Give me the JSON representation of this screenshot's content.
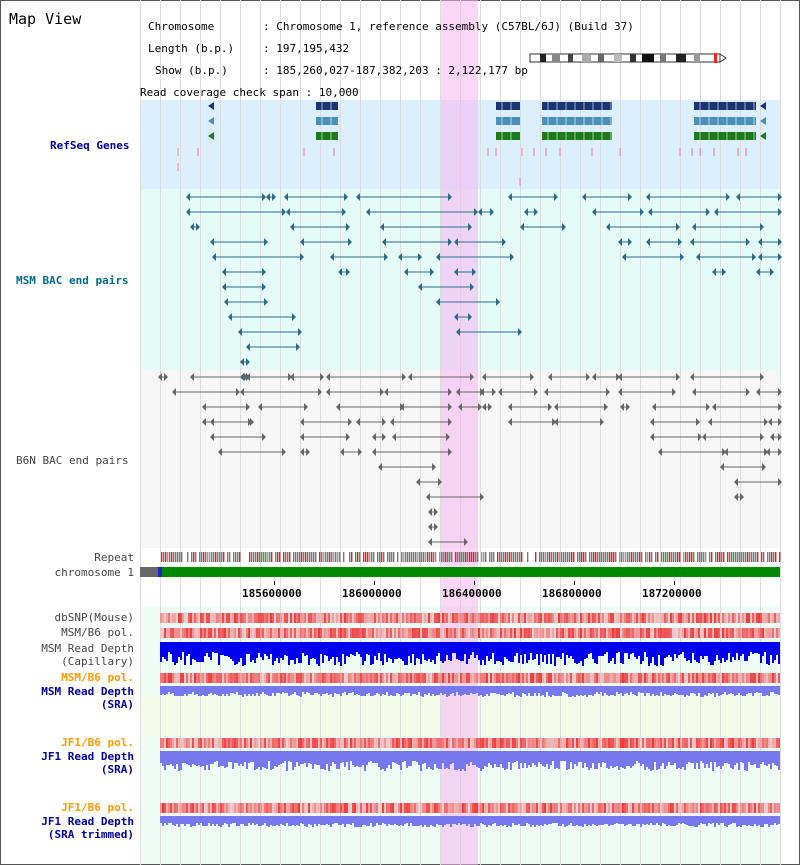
{
  "view_title": "Map View",
  "info": {
    "chromosome_key": "Chromosome",
    "chromosome_val": "Chromosome 1, reference assembly (C57BL/6J) (Build 37)",
    "length_key": "Length (b.p.)",
    "length_val": "197,195,432",
    "show_key": "Show (b.p.)",
    "show_val": "185,260,027-187,382,203 : 2,122,177 bp",
    "coverage_key": "Read coverage check span",
    "coverage_val": "10,000"
  },
  "tracks": {
    "refseq": "RefSeq Genes",
    "msm_bac": "MSM BAC end pairs",
    "b6n_bac": "B6N BAC end pairs",
    "repeat": "Repeat",
    "chromosome": "chromosome 1",
    "dbsnp": "dbSNP(Mouse)",
    "msm_b6_pol1": "MSM/B6 pol.",
    "msm_depth_cap_1": "MSM Read Depth",
    "msm_depth_cap_2": "(Capillary)",
    "msm_b6_pol2": "MSM/B6 pol.",
    "msm_depth_sra_1": "MSM Read Depth",
    "msm_depth_sra_2": "(SRA)",
    "jf1_b6_pol1": "JF1/B6 pol.",
    "jf1_depth_sra_1": "JF1 Read Depth",
    "jf1_depth_sra_2": "(SRA)",
    "jf1_b6_pol2": "JF1/B6 pol.",
    "jf1_depth_trim_1": "JF1 Read Depth",
    "jf1_depth_trim_2": "(SRA trimmed)"
  },
  "axis_ticks": [
    "185600000",
    "186000000",
    "186400000",
    "186800000",
    "187200000"
  ],
  "colors": {
    "refseq_bg": "#dcefff",
    "bac_bg": "#e4fbf8",
    "b6n_bg": "#f4f4f4",
    "gene_navy": "#1a3575",
    "gene_steel": "#4a90b8",
    "gene_green": "#1c7a1c",
    "msm_pair": "#2a6b8a",
    "b6n_pair": "#666666",
    "chrom_green": "#008800",
    "snp_red": "#ee3333",
    "depth_blue": "#0000ee",
    "depth_light": "#7777ee",
    "highlight": "#f5b4f0"
  }
}
